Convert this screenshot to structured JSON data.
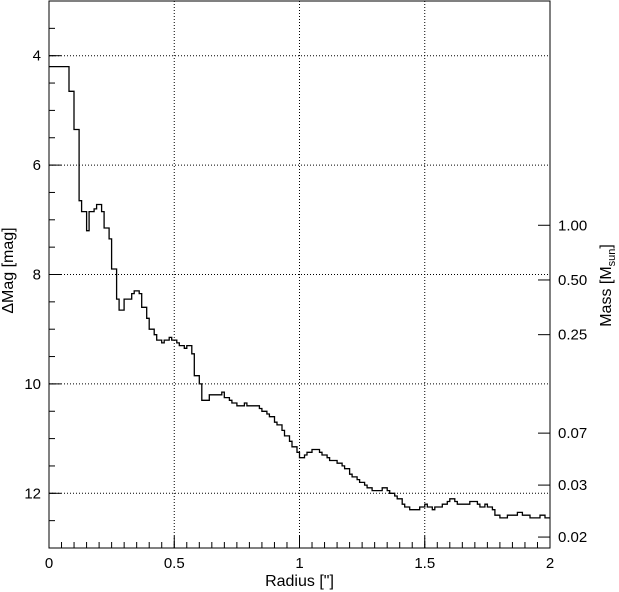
{
  "chart_data": {
    "type": "line",
    "title": "",
    "xlabel": "Radius [\"]",
    "ylabel": "ΔMag [mag]",
    "y2label": {
      "main": "Mass [M",
      "sub": "sun",
      "close": "]"
    },
    "xlim": [
      0,
      2
    ],
    "ylim": [
      13,
      3
    ],
    "grid": true,
    "x_ticks": [
      {
        "value": 0,
        "label": "0"
      },
      {
        "value": 0.5,
        "label": "0.5"
      },
      {
        "value": 1,
        "label": "1"
      },
      {
        "value": 1.5,
        "label": "1.5"
      },
      {
        "value": 2,
        "label": "2"
      }
    ],
    "y_ticks": [
      {
        "value": 4,
        "label": "4"
      },
      {
        "value": 6,
        "label": "6"
      },
      {
        "value": 8,
        "label": "8"
      },
      {
        "value": 10,
        "label": "10"
      },
      {
        "value": 12,
        "label": "12"
      }
    ],
    "y2_ticks": [
      {
        "dmag": 7.1,
        "label": "1.00"
      },
      {
        "dmag": 8.1,
        "label": "0.50"
      },
      {
        "dmag": 9.1,
        "label": "0.25"
      },
      {
        "dmag": 10.9,
        "label": "0.07"
      },
      {
        "dmag": 11.85,
        "label": "0.03"
      },
      {
        "dmag": 12.8,
        "label": "0.02"
      }
    ],
    "series": [
      {
        "style": "step",
        "x": [
          0,
          0.08,
          0.1,
          0.12,
          0.13,
          0.15,
          0.16,
          0.18,
          0.19,
          0.21,
          0.22,
          0.24,
          0.25,
          0.27,
          0.28,
          0.3,
          0.31,
          0.33,
          0.34,
          0.36,
          0.37,
          0.39,
          0.4,
          0.42,
          0.43,
          0.45,
          0.46,
          0.48,
          0.49,
          0.51,
          0.52,
          0.54,
          0.55,
          0.57,
          0.58,
          0.6,
          0.61,
          0.63,
          0.64,
          0.66,
          0.67,
          0.69,
          0.7,
          0.72,
          0.73,
          0.75,
          0.76,
          0.78,
          0.79,
          0.81,
          0.82,
          0.84,
          0.85,
          0.87,
          0.88,
          0.9,
          0.91,
          0.93,
          0.94,
          0.96,
          0.97,
          0.99,
          1.0,
          1.02,
          1.03,
          1.05,
          1.06,
          1.08,
          1.09,
          1.11,
          1.12,
          1.14,
          1.15,
          1.17,
          1.18,
          1.2,
          1.21,
          1.23,
          1.24,
          1.26,
          1.27,
          1.29,
          1.3,
          1.32,
          1.33,
          1.35,
          1.36,
          1.38,
          1.39,
          1.41,
          1.42,
          1.44,
          1.45,
          1.47,
          1.48,
          1.5,
          1.51,
          1.53,
          1.54,
          1.56,
          1.57,
          1.59,
          1.6,
          1.62,
          1.63,
          1.65,
          1.66,
          1.68,
          1.69,
          1.71,
          1.72,
          1.74,
          1.75,
          1.77,
          1.78,
          1.8,
          1.81,
          1.83,
          1.84,
          1.86,
          1.87,
          1.89,
          1.9,
          1.92,
          1.93,
          1.95,
          1.96,
          1.98,
          1.99,
          2.0
        ],
        "y": [
          4.2,
          4.65,
          5.35,
          6.65,
          6.85,
          7.2,
          6.85,
          6.8,
          6.72,
          6.85,
          7.15,
          7.35,
          7.9,
          8.45,
          8.65,
          8.45,
          8.45,
          8.35,
          8.3,
          8.35,
          8.6,
          8.8,
          9.0,
          9.1,
          9.2,
          9.25,
          9.2,
          9.15,
          9.2,
          9.25,
          9.3,
          9.35,
          9.3,
          9.45,
          9.85,
          10.0,
          10.3,
          10.3,
          10.2,
          10.2,
          10.2,
          10.15,
          10.25,
          10.3,
          10.35,
          10.4,
          10.4,
          10.35,
          10.4,
          10.4,
          10.4,
          10.45,
          10.5,
          10.55,
          10.6,
          10.7,
          10.75,
          10.85,
          10.95,
          11.05,
          11.15,
          11.25,
          11.35,
          11.3,
          11.25,
          11.2,
          11.2,
          11.25,
          11.3,
          11.35,
          11.4,
          11.4,
          11.45,
          11.5,
          11.55,
          11.65,
          11.7,
          11.75,
          11.8,
          11.85,
          11.9,
          11.95,
          11.95,
          11.95,
          11.9,
          11.95,
          12.0,
          12.05,
          12.1,
          12.2,
          12.25,
          12.3,
          12.3,
          12.3,
          12.25,
          12.2,
          12.25,
          12.3,
          12.25,
          12.25,
          12.2,
          12.15,
          12.1,
          12.15,
          12.2,
          12.2,
          12.2,
          12.15,
          12.15,
          12.2,
          12.25,
          12.2,
          12.25,
          12.3,
          12.4,
          12.45,
          12.45,
          12.4,
          12.4,
          12.4,
          12.35,
          12.4,
          12.4,
          12.45,
          12.45,
          12.45,
          12.4,
          12.45,
          12.45,
          12.45
        ]
      }
    ]
  }
}
